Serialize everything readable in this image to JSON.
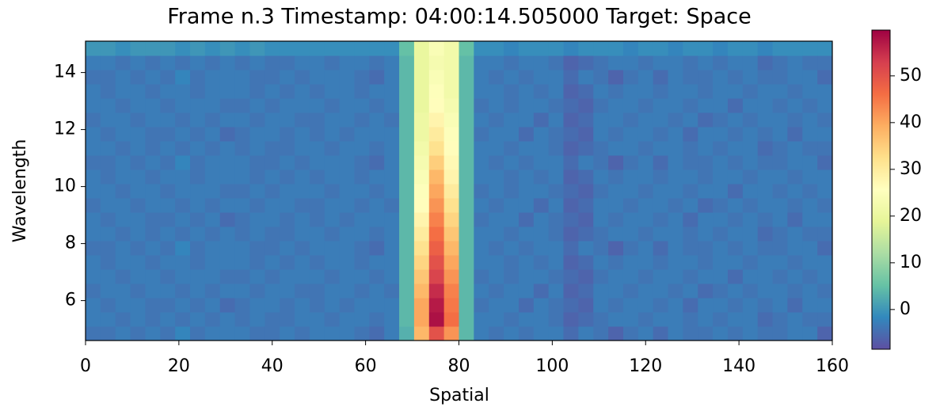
{
  "chart_data": {
    "type": "heatmap",
    "title": "Frame n.3 Timestamp: 04:00:14.505000 Target: Space",
    "x_label": "Spatial",
    "y_label": "Wavelength",
    "xlim": [
      0,
      160
    ],
    "ylim": [
      4.6,
      15.1
    ],
    "xticks": [
      0,
      20,
      40,
      60,
      80,
      100,
      120,
      140,
      160
    ],
    "yticks": [
      6,
      8,
      10,
      12,
      14
    ],
    "clim": [
      -8.5,
      59.8
    ],
    "cticks": [
      0,
      10,
      20,
      30,
      40,
      50
    ],
    "colormap": [
      "#5e4fa2",
      "#3288bd",
      "#66c2a5",
      "#abdda4",
      "#e6f598",
      "#ffffbf",
      "#fee08b",
      "#fdae61",
      "#f46d43",
      "#d53e4f",
      "#9e0142"
    ],
    "z": [
      [
        -4,
        -4,
        -3,
        -4,
        -3,
        -4,
        -2,
        -4,
        -3,
        -3,
        -3,
        -4,
        -4,
        -3,
        -4,
        -3,
        -3,
        -3,
        -4,
        -5,
        -3,
        3,
        38,
        50,
        42,
        4,
        -3,
        -4,
        -3,
        -4,
        -3,
        -3,
        -5,
        -3,
        -4,
        -6,
        -4,
        -3,
        -5,
        -3,
        -4,
        -4,
        -3,
        -4,
        -3,
        -4,
        -4,
        -3,
        -3,
        -6
      ],
      [
        -3,
        -3,
        -4,
        -3,
        -4,
        -3,
        -4,
        -3,
        -4,
        -3,
        -4,
        -3,
        -4,
        -4,
        -3,
        -3,
        -4,
        -3,
        -3,
        -4,
        -3,
        4,
        40,
        58,
        46,
        4,
        -3,
        -3,
        -4,
        -3,
        -3,
        -4,
        -6,
        -5,
        -4,
        -3,
        -3,
        -4,
        -3,
        -3,
        -4,
        -3,
        -4,
        -3,
        -3,
        -5,
        -4,
        -3,
        -4,
        -4
      ],
      [
        -3,
        -4,
        -3,
        -3,
        -4,
        -4,
        -3,
        -4,
        -3,
        -5,
        -4,
        -3,
        -3,
        -4,
        -3,
        -4,
        -3,
        -4,
        -3,
        -3,
        -3,
        4,
        40,
        57,
        45,
        4,
        -4,
        -3,
        -3,
        -5,
        -3,
        -4,
        -5,
        -6,
        -3,
        -4,
        -3,
        -3,
        -4,
        -3,
        -5,
        -3,
        -3,
        -4,
        -3,
        -4,
        -3,
        -5,
        -3,
        -3
      ],
      [
        -4,
        -3,
        -3,
        -4,
        -3,
        -3,
        -4,
        -3,
        -4,
        -3,
        -3,
        -4,
        -3,
        -3,
        -4,
        -4,
        -3,
        -3,
        -4,
        -3,
        -4,
        4,
        38,
        55,
        44,
        4,
        -3,
        -4,
        -3,
        -3,
        -5,
        -3,
        -6,
        -5,
        -3,
        -3,
        -4,
        -3,
        -3,
        -4,
        -3,
        -5,
        -4,
        -3,
        -4,
        -3,
        -3,
        -4,
        -3,
        -4
      ],
      [
        -3,
        -3,
        -4,
        -3,
        -3,
        -4,
        -3,
        -3,
        -3,
        -4,
        -4,
        -3,
        -4,
        -3,
        -3,
        -3,
        -4,
        -3,
        -3,
        -4,
        -3,
        4,
        36,
        52,
        42,
        4,
        -4,
        -3,
        -4,
        -3,
        -3,
        -4,
        -5,
        -6,
        -4,
        -3,
        -3,
        -4,
        -3,
        -3,
        -4,
        -3,
        -3,
        -5,
        -3,
        -3,
        -4,
        -3,
        -4,
        -3
      ],
      [
        -3,
        -4,
        -3,
        -3,
        -4,
        -3,
        -3,
        -4,
        -3,
        -3,
        -3,
        -4,
        -3,
        -4,
        -3,
        -4,
        -3,
        -3,
        -4,
        -3,
        -3,
        4,
        34,
        50,
        40,
        4,
        -3,
        -3,
        -4,
        -3,
        -4,
        -3,
        -6,
        -5,
        -3,
        -4,
        -3,
        -3,
        -4,
        -3,
        -3,
        -4,
        -3,
        -3,
        -4,
        -3,
        -3,
        -4,
        -3,
        -3
      ],
      [
        -4,
        -4,
        -3,
        -4,
        -3,
        -4,
        -2,
        -4,
        -3,
        -3,
        -3,
        -4,
        -4,
        -3,
        -4,
        -3,
        -3,
        -3,
        -4,
        -5,
        -3,
        4,
        32,
        48,
        38,
        4,
        -3,
        -4,
        -3,
        -4,
        -3,
        -3,
        -5,
        -3,
        -4,
        -6,
        -4,
        -3,
        -5,
        -3,
        -4,
        -4,
        -3,
        -4,
        -3,
        -4,
        -4,
        -3,
        -3,
        -5
      ],
      [
        -3,
        -3,
        -4,
        -3,
        -4,
        -3,
        -4,
        -3,
        -4,
        -3,
        -4,
        -3,
        -4,
        -4,
        -3,
        -3,
        -4,
        -3,
        -3,
        -4,
        -3,
        4,
        30,
        46,
        36,
        4,
        -3,
        -3,
        -4,
        -3,
        -3,
        -4,
        -6,
        -5,
        -4,
        -3,
        -3,
        -4,
        -3,
        -3,
        -4,
        -3,
        -4,
        -3,
        -3,
        -5,
        -4,
        -3,
        -4,
        -4
      ],
      [
        -3,
        -4,
        -3,
        -3,
        -4,
        -4,
        -3,
        -4,
        -3,
        -5,
        -4,
        -3,
        -3,
        -4,
        -3,
        -4,
        -3,
        -4,
        -3,
        -3,
        -3,
        4,
        28,
        44,
        34,
        4,
        -4,
        -3,
        -3,
        -5,
        -3,
        -4,
        -5,
        -6,
        -3,
        -4,
        -3,
        -3,
        -4,
        -3,
        -5,
        -3,
        -3,
        -4,
        -3,
        -4,
        -3,
        -5,
        -3,
        -3
      ],
      [
        -4,
        -3,
        -3,
        -4,
        -3,
        -3,
        -4,
        -3,
        -4,
        -3,
        -3,
        -4,
        -3,
        -3,
        -4,
        -4,
        -3,
        -3,
        -4,
        -3,
        -4,
        4,
        26,
        42,
        32,
        4,
        -3,
        -4,
        -3,
        -3,
        -5,
        -3,
        -6,
        -5,
        -3,
        -3,
        -4,
        -3,
        -3,
        -4,
        -3,
        -5,
        -4,
        -3,
        -4,
        -3,
        -3,
        -4,
        -3,
        -4
      ],
      [
        -3,
        -3,
        -4,
        -3,
        -3,
        -4,
        -3,
        -3,
        -3,
        -4,
        -4,
        -3,
        -4,
        -3,
        -3,
        -3,
        -4,
        -3,
        -3,
        -4,
        -3,
        4,
        25,
        40,
        30,
        4,
        -4,
        -3,
        -4,
        -3,
        -3,
        -4,
        -5,
        -6,
        -4,
        -3,
        -3,
        -4,
        -3,
        -3,
        -4,
        -3,
        -3,
        -5,
        -3,
        -3,
        -4,
        -3,
        -4,
        -3
      ],
      [
        -3,
        -4,
        -3,
        -3,
        -4,
        -3,
        -3,
        -4,
        -3,
        -3,
        -3,
        -4,
        -3,
        -4,
        -3,
        -4,
        -3,
        -3,
        -4,
        -3,
        -3,
        4,
        24,
        38,
        28,
        4,
        -3,
        -3,
        -4,
        -3,
        -4,
        -3,
        -6,
        -5,
        -3,
        -4,
        -3,
        -3,
        -4,
        -3,
        -3,
        -4,
        -3,
        -3,
        -4,
        -3,
        -3,
        -4,
        -3,
        -3
      ],
      [
        -4,
        -4,
        -3,
        -4,
        -3,
        -4,
        -2,
        -4,
        -3,
        -3,
        -3,
        -4,
        -4,
        -3,
        -4,
        -3,
        -3,
        -3,
        -4,
        -5,
        -3,
        4,
        23,
        35,
        27,
        4,
        -3,
        -4,
        -3,
        -4,
        -3,
        -3,
        -5,
        -3,
        -4,
        -6,
        -4,
        -3,
        -5,
        -3,
        -4,
        -4,
        -3,
        -4,
        -3,
        -4,
        -4,
        -3,
        -3,
        -5
      ],
      [
        -3,
        -3,
        -4,
        -3,
        -4,
        -3,
        -4,
        -3,
        -4,
        -3,
        -4,
        -3,
        -4,
        -4,
        -3,
        -3,
        -4,
        -3,
        -3,
        -4,
        -3,
        4,
        22,
        32,
        26,
        4,
        -3,
        -3,
        -4,
        -3,
        -3,
        -4,
        -6,
        -5,
        -4,
        -3,
        -3,
        -4,
        -3,
        -3,
        -4,
        -3,
        -4,
        -3,
        -3,
        -5,
        -4,
        -3,
        -4,
        -4
      ],
      [
        -3,
        -4,
        -3,
        -3,
        -4,
        -4,
        -3,
        -4,
        -3,
        -5,
        -4,
        -3,
        -3,
        -4,
        -3,
        -4,
        -3,
        -4,
        -3,
        -3,
        -3,
        4,
        21,
        30,
        25,
        4,
        -4,
        -3,
        -3,
        -5,
        -3,
        -4,
        -5,
        -6,
        -3,
        -4,
        -3,
        -3,
        -4,
        -3,
        -5,
        -3,
        -3,
        -4,
        -3,
        -4,
        -3,
        -5,
        -3,
        -3
      ],
      [
        -4,
        -3,
        -3,
        -4,
        -3,
        -3,
        -4,
        -3,
        -4,
        -3,
        -3,
        -4,
        -3,
        -3,
        -4,
        -4,
        -3,
        -3,
        -4,
        -3,
        -4,
        4,
        21,
        28,
        24,
        4,
        -3,
        -4,
        -3,
        -3,
        -5,
        -3,
        -6,
        -5,
        -3,
        -3,
        -4,
        -3,
        -3,
        -4,
        -3,
        -5,
        -4,
        -3,
        -4,
        -3,
        -3,
        -4,
        -3,
        -4
      ],
      [
        -3,
        -3,
        -4,
        -3,
        -3,
        -4,
        -3,
        -3,
        -3,
        -4,
        -4,
        -3,
        -4,
        -3,
        -3,
        -3,
        -4,
        -3,
        -3,
        -4,
        -3,
        4,
        20,
        26,
        23,
        4,
        -4,
        -3,
        -4,
        -3,
        -3,
        -4,
        -5,
        -6,
        -4,
        -3,
        -3,
        -4,
        -3,
        -3,
        -4,
        -3,
        -3,
        -5,
        -3,
        -3,
        -4,
        -3,
        -4,
        -3
      ],
      [
        -3,
        -4,
        -3,
        -3,
        -4,
        -3,
        -3,
        -4,
        -3,
        -3,
        -3,
        -4,
        -3,
        -4,
        -3,
        -4,
        -3,
        -3,
        -4,
        -3,
        -3,
        4,
        20,
        25,
        22,
        4,
        -3,
        -3,
        -4,
        -3,
        -4,
        -3,
        -6,
        -5,
        -3,
        -4,
        -3,
        -3,
        -4,
        -3,
        -3,
        -4,
        -3,
        -3,
        -4,
        -3,
        -3,
        -4,
        -3,
        -3
      ],
      [
        -4,
        -4,
        -3,
        -4,
        -3,
        -4,
        -2,
        -4,
        -3,
        -3,
        -3,
        -4,
        -4,
        -3,
        -4,
        -3,
        -3,
        -3,
        -4,
        -5,
        -3,
        4,
        20,
        24,
        22,
        4,
        -3,
        -4,
        -3,
        -4,
        -3,
        -3,
        -5,
        -3,
        -4,
        -6,
        -4,
        -3,
        -5,
        -3,
        -4,
        -4,
        -3,
        -4,
        -3,
        -4,
        -4,
        -3,
        -3,
        -5
      ],
      [
        -3,
        -3,
        -4,
        -3,
        -4,
        -3,
        -4,
        -3,
        -4,
        -3,
        -4,
        -3,
        -4,
        -4,
        -3,
        -3,
        -4,
        -3,
        -3,
        -4,
        -3,
        4,
        20,
        23,
        22,
        4,
        -3,
        -3,
        -4,
        -3,
        -3,
        -4,
        -6,
        -5,
        -4,
        -3,
        -3,
        -4,
        -3,
        -3,
        -4,
        -3,
        -4,
        -3,
        -3,
        -5,
        -4,
        -3,
        -4,
        -4
      ],
      [
        0,
        0,
        -1,
        0,
        0,
        0,
        -1,
        0,
        -1,
        0,
        -1,
        0,
        -1,
        -1,
        -1,
        -1,
        -1,
        -1,
        -1,
        -1,
        -1,
        5,
        20,
        24,
        22,
        5,
        -1,
        -1,
        -2,
        -1,
        -1,
        -1,
        -2,
        -1,
        -1,
        -1,
        -2,
        -1,
        -1,
        -2,
        -1,
        -1,
        -2,
        -1,
        -1,
        -2,
        -1,
        -1,
        -1,
        -1
      ]
    ]
  }
}
